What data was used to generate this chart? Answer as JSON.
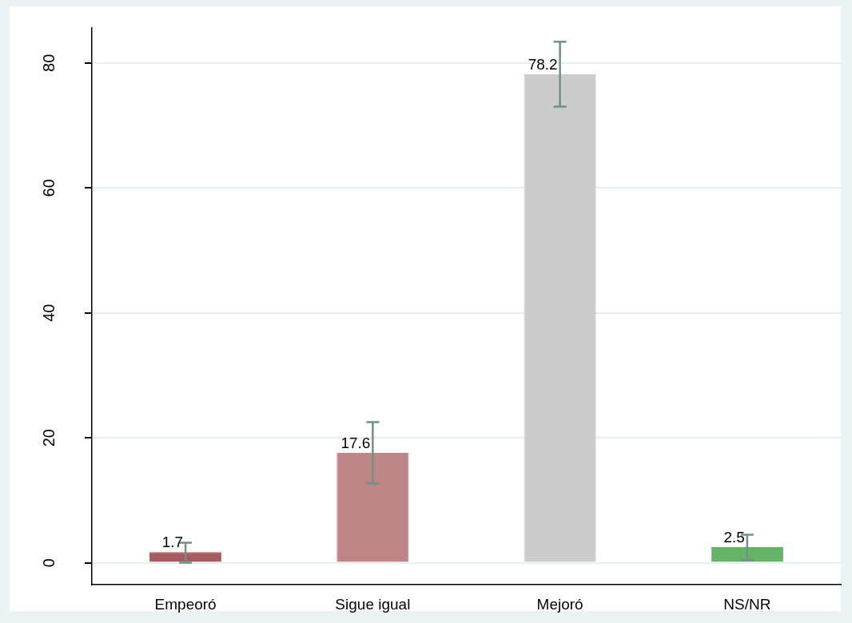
{
  "chart_data": {
    "type": "bar",
    "categories": [
      "Empeoró",
      "Sigue igual",
      "Mejoró",
      "NS/NR"
    ],
    "values": [
      1.7,
      17.6,
      78.2,
      2.5
    ],
    "colors": [
      "#a65b61",
      "#bd8586",
      "#cccccc",
      "#66b266"
    ],
    "errors": [
      [
        0.0,
        3.2
      ],
      [
        12.7,
        22.5
      ],
      [
        73.0,
        83.4
      ],
      [
        0.4,
        4.5
      ]
    ],
    "ylim": [
      -3.5,
      85.6
    ],
    "yticks": [
      0,
      20,
      40,
      60,
      80
    ],
    "grid": "y",
    "data_labels": true
  }
}
